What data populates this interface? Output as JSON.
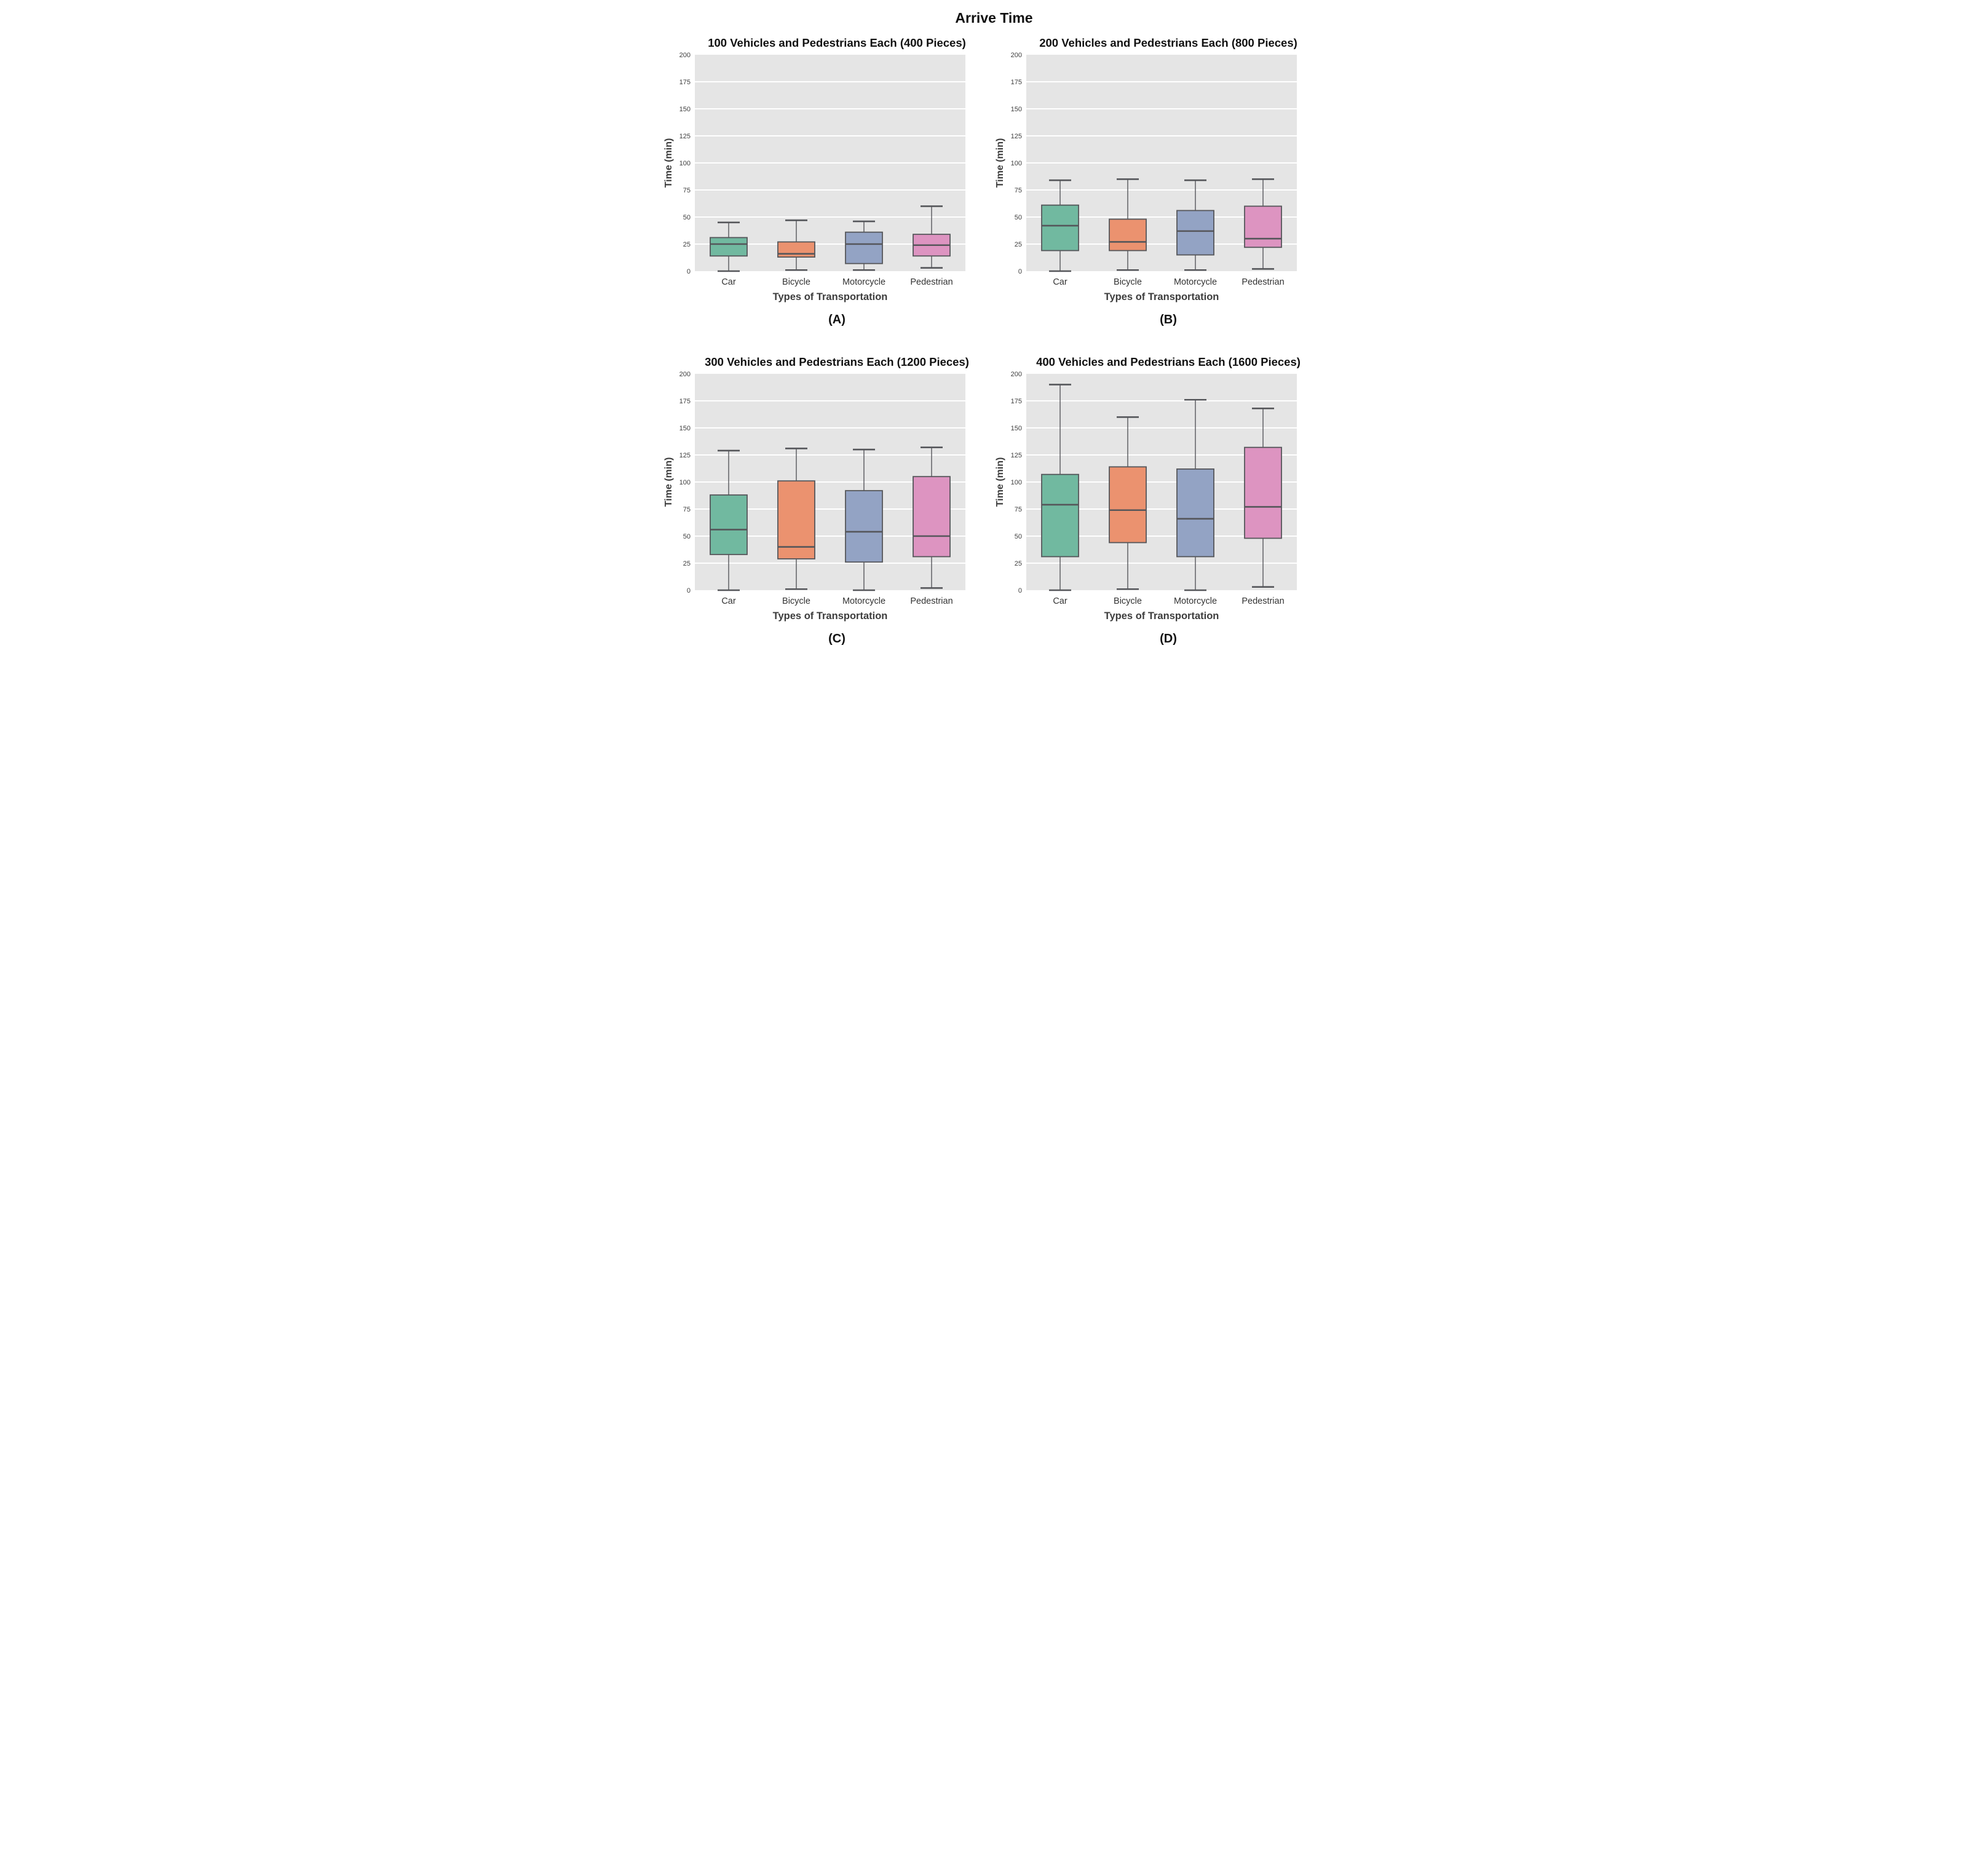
{
  "figure_title": "Arrive Time",
  "style": {
    "box_colors": [
      "#71b9a0",
      "#eb926f",
      "#93a3c4",
      "#dd94c1"
    ],
    "edge_color": "#55565a",
    "plot_bg": "#e5e5e5",
    "grid_color": "#ffffff",
    "tick_color": "#3d3d3d",
    "label_color": "#3d3d3d"
  },
  "chart_data": [
    {
      "type": "box",
      "panel_label": "(A)",
      "title": "100 Vehicles and Pedestrians Each (400 Pieces)",
      "xlabel": "Types of Transportation",
      "ylabel": "Time (min)",
      "ylim": [
        0,
        200
      ],
      "yticks": [
        0,
        25,
        50,
        75,
        100,
        125,
        150,
        175,
        200
      ],
      "grid": true,
      "categories": [
        "Car",
        "Bicycle",
        "Motorcycle",
        "Pedestrian"
      ],
      "series": [
        {
          "name": "Car",
          "min": 0,
          "q1": 14,
          "median": 25,
          "q3": 31,
          "max": 45
        },
        {
          "name": "Bicycle",
          "min": 1,
          "q1": 13,
          "median": 16,
          "q3": 27,
          "max": 47
        },
        {
          "name": "Motorcycle",
          "min": 1,
          "q1": 7,
          "median": 25,
          "q3": 36,
          "max": 46
        },
        {
          "name": "Pedestrian",
          "min": 3,
          "q1": 14,
          "median": 24,
          "q3": 34,
          "max": 60
        }
      ]
    },
    {
      "type": "box",
      "panel_label": "(B)",
      "title": "200 Vehicles and Pedestrians Each (800 Pieces)",
      "xlabel": "Types of Transportation",
      "ylabel": "Time (min)",
      "ylim": [
        0,
        200
      ],
      "yticks": [
        0,
        25,
        50,
        75,
        100,
        125,
        150,
        175,
        200
      ],
      "grid": true,
      "categories": [
        "Car",
        "Bicycle",
        "Motorcycle",
        "Pedestrian"
      ],
      "series": [
        {
          "name": "Car",
          "min": 0,
          "q1": 19,
          "median": 42,
          "q3": 61,
          "max": 84
        },
        {
          "name": "Bicycle",
          "min": 1,
          "q1": 19,
          "median": 27,
          "q3": 48,
          "max": 85
        },
        {
          "name": "Motorcycle",
          "min": 1,
          "q1": 15,
          "median": 37,
          "q3": 56,
          "max": 84
        },
        {
          "name": "Pedestrian",
          "min": 2,
          "q1": 22,
          "median": 30,
          "q3": 60,
          "max": 85
        }
      ]
    },
    {
      "type": "box",
      "panel_label": "(C)",
      "title": "300 Vehicles and Pedestrians Each (1200 Pieces)",
      "xlabel": "Types of Transportation",
      "ylabel": "Time (min)",
      "ylim": [
        0,
        200
      ],
      "yticks": [
        0,
        25,
        50,
        75,
        100,
        125,
        150,
        175,
        200
      ],
      "grid": true,
      "categories": [
        "Car",
        "Bicycle",
        "Motorcycle",
        "Pedestrian"
      ],
      "series": [
        {
          "name": "Car",
          "min": 0,
          "q1": 33,
          "median": 56,
          "q3": 88,
          "max": 129
        },
        {
          "name": "Bicycle",
          "min": 1,
          "q1": 29,
          "median": 40,
          "q3": 101,
          "max": 131
        },
        {
          "name": "Motorcycle",
          "min": 0,
          "q1": 26,
          "median": 54,
          "q3": 92,
          "max": 130
        },
        {
          "name": "Pedestrian",
          "min": 2,
          "q1": 31,
          "median": 50,
          "q3": 105,
          "max": 132
        }
      ]
    },
    {
      "type": "box",
      "panel_label": "(D)",
      "title": "400 Vehicles and Pedestrians Each (1600 Pieces)",
      "xlabel": "Types of Transportation",
      "ylabel": "Time (min)",
      "ylim": [
        0,
        200
      ],
      "yticks": [
        0,
        25,
        50,
        75,
        100,
        125,
        150,
        175,
        200
      ],
      "grid": true,
      "categories": [
        "Car",
        "Bicycle",
        "Motorcycle",
        "Pedestrian"
      ],
      "series": [
        {
          "name": "Car",
          "min": 0,
          "q1": 31,
          "median": 79,
          "q3": 107,
          "max": 190
        },
        {
          "name": "Bicycle",
          "min": 1,
          "q1": 44,
          "median": 74,
          "q3": 114,
          "max": 160
        },
        {
          "name": "Motorcycle",
          "min": 0,
          "q1": 31,
          "median": 66,
          "q3": 112,
          "max": 176
        },
        {
          "name": "Pedestrian",
          "min": 3,
          "q1": 48,
          "median": 77,
          "q3": 132,
          "max": 168
        }
      ]
    }
  ]
}
